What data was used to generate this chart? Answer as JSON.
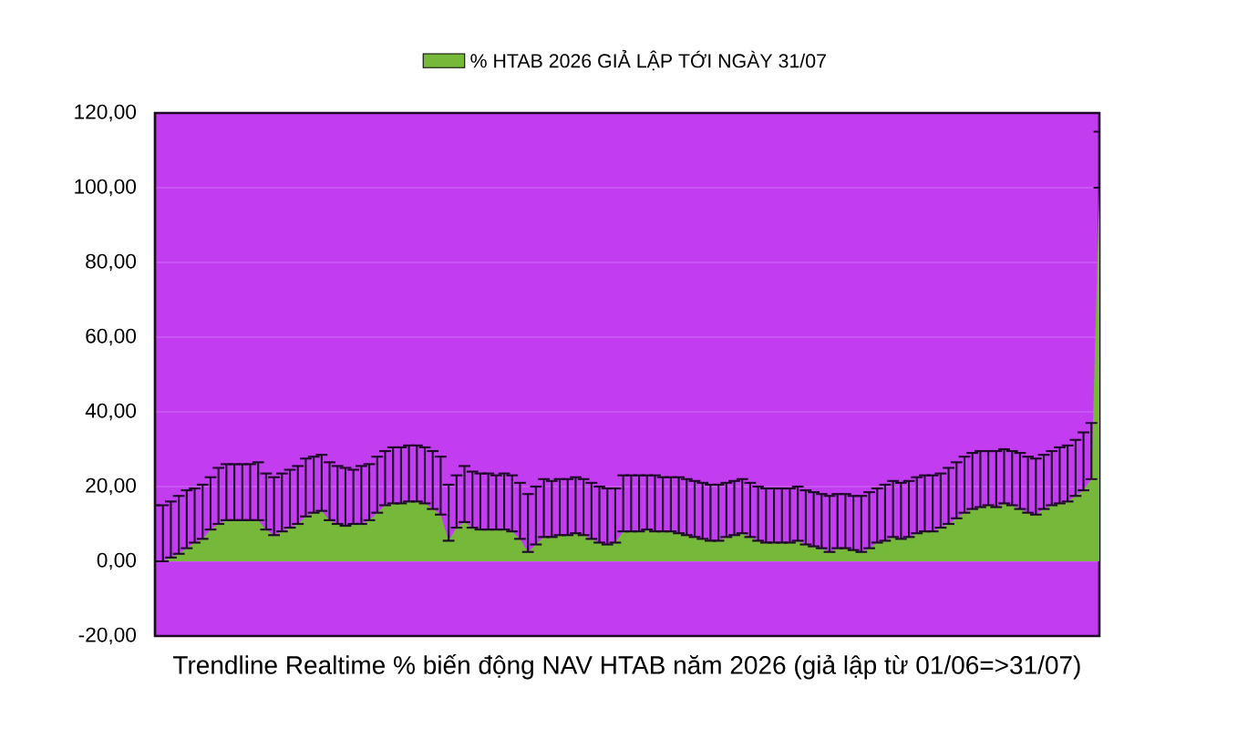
{
  "chart_data": {
    "type": "area",
    "xlabel": "Trendline Realtime % biến động NAV HTAB năm 2026 (giả lập từ 01/06=>31/07)",
    "categories": [
      null,
      null,
      null,
      null,
      null,
      null,
      null,
      null,
      null,
      null,
      null,
      null,
      null,
      null,
      null,
      null,
      null,
      null,
      null,
      null,
      null,
      null,
      null,
      null,
      null,
      null,
      null,
      null,
      null,
      null,
      null,
      null,
      null,
      null,
      null,
      null,
      null,
      null,
      null,
      null,
      null,
      null,
      null,
      null,
      null,
      null,
      null,
      null,
      null,
      null,
      null,
      null,
      null,
      null,
      null,
      null,
      null,
      null,
      null,
      null,
      null,
      null,
      null,
      null,
      null,
      null,
      null,
      null,
      null,
      null,
      null,
      null,
      null,
      null,
      null,
      null,
      null,
      null,
      null,
      null,
      null,
      null,
      null,
      null,
      null,
      null,
      null,
      null,
      null,
      null,
      null,
      null,
      null,
      null,
      null,
      null,
      null,
      null,
      null,
      null,
      null,
      null,
      null,
      null,
      null,
      null,
      null,
      null,
      null,
      null,
      null,
      null,
      null,
      null,
      null,
      null,
      null,
      null,
      null,
      null
    ],
    "series": [
      {
        "name": "% HTAB 2026 GIẢ LẬP TỚI NGÀY 31/07",
        "color": "#76b83a",
        "values": [
          0,
          0,
          1,
          2,
          3.5,
          5,
          6,
          8.5,
          10,
          11,
          11,
          11,
          11,
          11,
          8.5,
          7,
          8,
          9,
          10,
          12,
          13,
          13.5,
          11,
          10,
          9.5,
          10,
          10,
          11,
          13,
          15,
          15.5,
          15.5,
          16,
          16,
          15.5,
          14,
          12.5,
          5.5,
          9,
          10.5,
          9,
          8.5,
          8.5,
          8.5,
          8.5,
          8,
          6,
          2.5,
          4.5,
          6.5,
          6.5,
          7,
          7,
          7.5,
          7,
          6,
          5,
          4.5,
          5,
          8,
          8,
          8,
          8.5,
          8,
          8,
          8,
          7.5,
          7,
          6.5,
          6,
          5.5,
          5.5,
          6.5,
          7,
          7.5,
          6.5,
          5.5,
          5,
          5,
          5,
          5,
          5.5,
          4.5,
          4,
          3.5,
          2.5,
          3.5,
          3.5,
          3,
          2.5,
          3.5,
          5,
          5.5,
          6.5,
          6,
          6.5,
          7.5,
          8,
          8,
          9,
          10,
          11.5,
          13,
          14,
          14.5,
          15,
          14.5,
          15.5,
          15,
          14,
          13,
          12.5,
          14,
          15,
          15.5,
          16,
          17.5,
          19,
          22,
          100
        ],
        "errors": [
          [
            0,
            15
          ],
          [
            0,
            15
          ],
          [
            1,
            16
          ],
          [
            2,
            17.5
          ],
          [
            3.5,
            19
          ],
          [
            5,
            19.5
          ],
          [
            6,
            20.5
          ],
          [
            8.5,
            22.5
          ],
          [
            10,
            25
          ],
          [
            11,
            26
          ],
          [
            11,
            26
          ],
          [
            11,
            26
          ],
          [
            11,
            26
          ],
          [
            11,
            26.5
          ],
          [
            8.5,
            23.5
          ],
          [
            7,
            22.5
          ],
          [
            8,
            23.5
          ],
          [
            9,
            24.5
          ],
          [
            10,
            25.5
          ],
          [
            12,
            27.5
          ],
          [
            13,
            28
          ],
          [
            13.5,
            28.5
          ],
          [
            11,
            26.5
          ],
          [
            10,
            25.5
          ],
          [
            9.5,
            25
          ],
          [
            10,
            24.5
          ],
          [
            10,
            25.5
          ],
          [
            11,
            26
          ],
          [
            13,
            28
          ],
          [
            15,
            29.5
          ],
          [
            15.5,
            30.5
          ],
          [
            15.5,
            30.5
          ],
          [
            16,
            31
          ],
          [
            16,
            31
          ],
          [
            15.5,
            30.5
          ],
          [
            14,
            29.5
          ],
          [
            12.5,
            28
          ],
          [
            5.5,
            20.5
          ],
          [
            9,
            23
          ],
          [
            10.5,
            25.5
          ],
          [
            9,
            24
          ],
          [
            8.5,
            23.5
          ],
          [
            8.5,
            23.5
          ],
          [
            8.5,
            23
          ],
          [
            8.5,
            23.5
          ],
          [
            8,
            23
          ],
          [
            6,
            21
          ],
          [
            2.5,
            18
          ],
          [
            4.5,
            20
          ],
          [
            6.5,
            22
          ],
          [
            6.5,
            21.5
          ],
          [
            7,
            22
          ],
          [
            7,
            22
          ],
          [
            7.5,
            22.5
          ],
          [
            7,
            22
          ],
          [
            6,
            21
          ],
          [
            5,
            20
          ],
          [
            4.5,
            19.5
          ],
          [
            5,
            19.5
          ],
          [
            8,
            23
          ],
          [
            8,
            23
          ],
          [
            8,
            23
          ],
          [
            8.5,
            23
          ],
          [
            8,
            23
          ],
          [
            8,
            22.5
          ],
          [
            8,
            22.5
          ],
          [
            7.5,
            22.5
          ],
          [
            7,
            22
          ],
          [
            6.5,
            21.5
          ],
          [
            6,
            21
          ],
          [
            5.5,
            20.5
          ],
          [
            5.5,
            20.5
          ],
          [
            6.5,
            21
          ],
          [
            7,
            21.5
          ],
          [
            7.5,
            22
          ],
          [
            6.5,
            21
          ],
          [
            5.5,
            20
          ],
          [
            5,
            19.5
          ],
          [
            5,
            19.5
          ],
          [
            5,
            19.5
          ],
          [
            5,
            19.5
          ],
          [
            5.5,
            20
          ],
          [
            4.5,
            19
          ],
          [
            4,
            18.5
          ],
          [
            3.5,
            18
          ],
          [
            2.5,
            17.5
          ],
          [
            3.5,
            18
          ],
          [
            3.5,
            18
          ],
          [
            3,
            17.5
          ],
          [
            2.5,
            17.5
          ],
          [
            3.5,
            18.5
          ],
          [
            5,
            19.5
          ],
          [
            5.5,
            20.5
          ],
          [
            6.5,
            21.5
          ],
          [
            6,
            21
          ],
          [
            6.5,
            21.5
          ],
          [
            7.5,
            22.5
          ],
          [
            8,
            23
          ],
          [
            8,
            23
          ],
          [
            9,
            23.5
          ],
          [
            10,
            25
          ],
          [
            11.5,
            26.5
          ],
          [
            13,
            28
          ],
          [
            14,
            29
          ],
          [
            14.5,
            29.5
          ],
          [
            15,
            29.5
          ],
          [
            14.5,
            29.5
          ],
          [
            15.5,
            30
          ],
          [
            15,
            29.5
          ],
          [
            14,
            29
          ],
          [
            13,
            28
          ],
          [
            12.5,
            27.5
          ],
          [
            14,
            28.5
          ],
          [
            15,
            29.5
          ],
          [
            15.5,
            30.5
          ],
          [
            16,
            31
          ],
          [
            17.5,
            32.5
          ],
          [
            19,
            34.5
          ],
          [
            22,
            37
          ],
          [
            100,
            115
          ]
        ]
      }
    ],
    "ylim": [
      -20,
      120
    ],
    "yticks": [
      {
        "value": -20,
        "label": "-20,00"
      },
      {
        "value": 0,
        "label": "0,00"
      },
      {
        "value": 20,
        "label": "20,00"
      },
      {
        "value": 40,
        "label": "40,00"
      },
      {
        "value": 60,
        "label": "60,00"
      },
      {
        "value": 80,
        "label": "80,00"
      },
      {
        "value": 100,
        "label": "100,00"
      },
      {
        "value": 120,
        "label": "120,00"
      }
    ],
    "grid": "y",
    "legend": "top",
    "tick_labels": "y"
  }
}
